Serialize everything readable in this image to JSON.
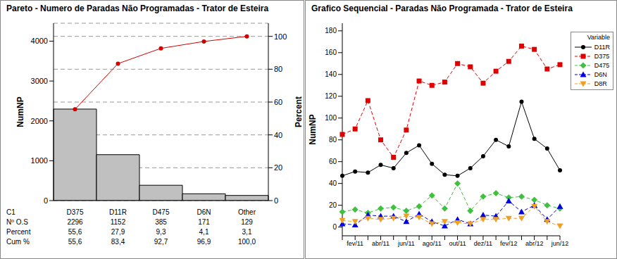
{
  "chart_data": [
    {
      "type": "pareto",
      "title": "Pareto - Numero de Paradas Não Programadas - Trator de Esteira",
      "y_label": "NumNP",
      "y2_label": "Percent",
      "category_label": "C1",
      "categories": [
        "D375",
        "D11R",
        "D475",
        "D6N",
        "Other"
      ],
      "series": [
        {
          "name": "Nº O.S",
          "type": "bar",
          "color": "#c0c0c0",
          "values": [
            2296,
            1152,
            385,
            171,
            129
          ]
        },
        {
          "name": "Percent",
          "type": "table",
          "values": [
            55.6,
            27.9,
            9.3,
            4.1,
            3.1
          ],
          "value_labels": [
            "55,6",
            "27,9",
            "9,3",
            "4,1",
            "3,1"
          ]
        },
        {
          "name": "Cum %",
          "type": "line",
          "axis": "y2",
          "color": "#d00000",
          "marker": "circle",
          "values": [
            55.6,
            83.4,
            92.7,
            96.9,
            100.0
          ],
          "value_labels": [
            "55,6",
            "83,4",
            "92,7",
            "96,9",
            "100,0"
          ]
        }
      ],
      "ylim": [
        0,
        4450
      ],
      "yticks": [
        0,
        1000,
        2000,
        3000,
        4000
      ],
      "y2lim": [
        0,
        108
      ],
      "y2ticks": [
        0,
        20,
        40,
        60,
        80,
        100
      ],
      "grid": true
    },
    {
      "type": "line",
      "title": "Grafico Sequencial - Paradas Não Programada - Trator de Esteira",
      "y_label": "NumNP",
      "legend_title": "Variable",
      "legend": "right",
      "categories": [
        null,
        "fev/11",
        null,
        "abr/11",
        null,
        "jun/11",
        null,
        "ago/11",
        null,
        "out/11",
        null,
        "dez/11",
        null,
        "fev/12",
        null,
        "abr/12",
        null,
        "jun/12"
      ],
      "series": [
        {
          "name": "D11R",
          "color": "#000000",
          "marker": "circle",
          "line_style": "solid",
          "values": [
            47,
            51,
            50,
            57,
            54,
            68,
            75,
            58,
            48,
            47,
            54,
            65,
            80,
            74,
            115,
            81,
            72,
            52
          ]
        },
        {
          "name": "D375",
          "color": "#e00000",
          "marker": "square",
          "line_style": "dashed",
          "values": [
            85,
            90,
            116,
            80,
            64,
            89,
            134,
            130,
            133,
            150,
            147,
            132,
            143,
            152,
            166,
            163,
            145,
            149
          ]
        },
        {
          "name": "D475",
          "color": "#40c040",
          "marker": "diamond",
          "line_style": "dashed",
          "values": [
            14,
            16,
            13,
            17,
            18,
            15,
            19,
            29,
            17,
            40,
            15,
            28,
            31,
            27,
            28,
            25,
            20,
            17
          ]
        },
        {
          "name": "D6N",
          "color": "#0000e0",
          "marker": "triangle",
          "line_style": "dashed",
          "values": [
            3,
            2,
            11,
            10,
            10,
            5,
            12,
            5,
            1,
            7,
            3,
            11,
            10,
            24,
            14,
            20,
            7,
            19
          ]
        },
        {
          "name": "D8R",
          "color": "#f0a020",
          "marker": "triangle-down",
          "line_style": "dashed",
          "values": [
            6,
            5,
            8,
            7,
            8,
            10,
            9,
            3,
            5,
            4,
            3,
            7,
            7,
            8,
            8,
            19,
            5,
            1
          ]
        }
      ],
      "ylim": [
        -8,
        187
      ],
      "yticks": [
        0,
        20,
        40,
        60,
        80,
        100,
        120,
        140,
        160,
        180
      ],
      "grid": false
    }
  ]
}
